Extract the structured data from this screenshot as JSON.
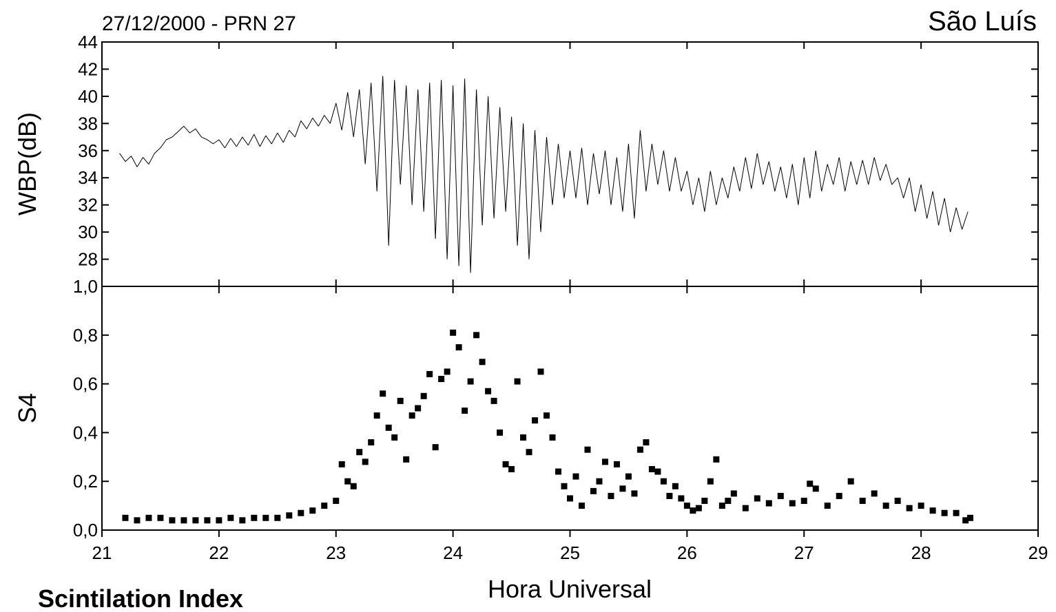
{
  "caption": "Scintilation Index",
  "chart_data": [
    {
      "type": "line",
      "title": "27/12/2000 - PRN 27",
      "annotation": "São Luís",
      "y_label": "WBP(dB)",
      "color": "#000000",
      "xlim": [
        21,
        29
      ],
      "ylim": [
        26,
        44
      ],
      "yticks": [
        28,
        30,
        32,
        34,
        36,
        38,
        40,
        42,
        44
      ],
      "x": [
        21.15,
        21.2,
        21.25,
        21.3,
        21.35,
        21.4,
        21.45,
        21.5,
        21.55,
        21.6,
        21.65,
        21.7,
        21.75,
        21.8,
        21.85,
        21.9,
        21.95,
        22.0,
        22.05,
        22.1,
        22.15,
        22.2,
        22.25,
        22.3,
        22.35,
        22.4,
        22.45,
        22.5,
        22.55,
        22.6,
        22.65,
        22.7,
        22.75,
        22.8,
        22.85,
        22.9,
        22.95,
        23.0,
        23.05,
        23.1,
        23.15,
        23.2,
        23.25,
        23.3,
        23.35,
        23.4,
        23.45,
        23.5,
        23.55,
        23.6,
        23.65,
        23.7,
        23.75,
        23.8,
        23.85,
        23.9,
        23.95,
        24.0,
        24.05,
        24.1,
        24.15,
        24.2,
        24.25,
        24.3,
        24.35,
        24.4,
        24.45,
        24.5,
        24.55,
        24.6,
        24.65,
        24.7,
        24.75,
        24.8,
        24.85,
        24.9,
        24.95,
        25.0,
        25.05,
        25.1,
        25.15,
        25.2,
        25.25,
        25.3,
        25.35,
        25.4,
        25.45,
        25.5,
        25.55,
        25.6,
        25.65,
        25.7,
        25.75,
        25.8,
        25.85,
        25.9,
        25.95,
        26.0,
        26.05,
        26.1,
        26.15,
        26.2,
        26.25,
        26.3,
        26.35,
        26.4,
        26.45,
        26.5,
        26.55,
        26.6,
        26.65,
        26.7,
        26.75,
        26.8,
        26.85,
        26.9,
        26.95,
        27.0,
        27.05,
        27.1,
        27.15,
        27.2,
        27.25,
        27.3,
        27.35,
        27.4,
        27.45,
        27.5,
        27.55,
        27.6,
        27.65,
        27.7,
        27.75,
        27.8,
        27.85,
        27.9,
        27.95,
        28.0,
        28.05,
        28.1,
        28.15,
        28.2,
        28.25,
        28.3,
        28.35,
        28.4
      ],
      "values": [
        35.8,
        35.2,
        35.6,
        34.8,
        35.5,
        35.0,
        35.8,
        36.2,
        36.8,
        37.0,
        37.4,
        37.8,
        37.3,
        37.6,
        37.0,
        36.8,
        36.5,
        36.8,
        36.2,
        36.9,
        36.3,
        37.0,
        36.4,
        37.2,
        36.3,
        37.1,
        36.5,
        37.3,
        36.6,
        37.5,
        37.0,
        38.2,
        37.6,
        38.4,
        37.8,
        38.6,
        38.0,
        39.5,
        37.5,
        40.3,
        37.0,
        40.5,
        35.0,
        41.0,
        33.0,
        41.5,
        29.0,
        41.2,
        33.5,
        40.8,
        32.0,
        40.5,
        31.5,
        41.0,
        29.5,
        41.2,
        28.0,
        40.8,
        27.5,
        41.3,
        27.0,
        40.5,
        30.5,
        40.0,
        31.0,
        39.2,
        31.5,
        38.5,
        29.0,
        38.0,
        28.0,
        37.5,
        30.0,
        37.0,
        32.0,
        36.5,
        32.5,
        36.0,
        32.5,
        36.2,
        32.0,
        35.8,
        32.8,
        36.0,
        32.0,
        35.5,
        31.5,
        36.5,
        31.0,
        37.5,
        33.0,
        36.5,
        33.5,
        36.0,
        33.0,
        35.5,
        33.0,
        34.5,
        32.0,
        34.0,
        31.5,
        34.5,
        32.0,
        34.0,
        32.5,
        34.8,
        33.0,
        35.5,
        33.2,
        35.8,
        33.5,
        35.2,
        33.0,
        34.8,
        32.5,
        35.0,
        32.0,
        35.5,
        32.5,
        36.0,
        33.0,
        35.0,
        33.5,
        35.5,
        33.0,
        35.2,
        33.5,
        35.3,
        33.5,
        35.5,
        33.8,
        35.0,
        33.5,
        34.0,
        32.5,
        34.0,
        31.5,
        33.5,
        31.0,
        33.0,
        30.5,
        32.5,
        30.0,
        31.8,
        30.2,
        31.5
      ]
    },
    {
      "type": "scatter",
      "y_label": "S4",
      "x_label": "Hora Universal",
      "color": "#000000",
      "xlim": [
        21,
        29
      ],
      "ylim": [
        0,
        1
      ],
      "xticks": [
        21,
        22,
        23,
        24,
        25,
        26,
        27,
        28,
        29
      ],
      "yticks": [
        {
          "value": 0,
          "label": "0,0"
        },
        {
          "value": 0.2,
          "label": "0,2"
        },
        {
          "value": 0.4,
          "label": "0,4"
        },
        {
          "value": 0.6,
          "label": "0,6"
        },
        {
          "value": 0.8,
          "label": "0,8"
        },
        {
          "value": 1,
          "label": "1,0"
        }
      ],
      "x": [
        21.2,
        21.3,
        21.4,
        21.5,
        21.6,
        21.7,
        21.8,
        21.9,
        22.0,
        22.1,
        22.2,
        22.3,
        22.4,
        22.5,
        22.6,
        22.7,
        22.8,
        22.9,
        23.0,
        23.05,
        23.1,
        23.15,
        23.2,
        23.25,
        23.3,
        23.35,
        23.4,
        23.45,
        23.5,
        23.55,
        23.6,
        23.65,
        23.7,
        23.75,
        23.8,
        23.85,
        23.9,
        23.95,
        24.0,
        24.05,
        24.1,
        24.15,
        24.2,
        24.25,
        24.3,
        24.35,
        24.4,
        24.45,
        24.5,
        24.55,
        24.6,
        24.65,
        24.7,
        24.75,
        24.8,
        24.85,
        24.9,
        24.95,
        25.0,
        25.05,
        25.1,
        25.15,
        25.2,
        25.25,
        25.3,
        25.35,
        25.4,
        25.45,
        25.5,
        25.55,
        25.6,
        25.65,
        25.7,
        25.75,
        25.8,
        25.85,
        25.9,
        25.95,
        26.0,
        26.05,
        26.1,
        26.15,
        26.2,
        26.25,
        26.3,
        26.35,
        26.4,
        26.5,
        26.6,
        26.7,
        26.8,
        26.9,
        27.0,
        27.05,
        27.1,
        27.2,
        27.3,
        27.4,
        27.5,
        27.6,
        27.7,
        27.8,
        27.9,
        28.0,
        28.1,
        28.2,
        28.3,
        28.38,
        28.42
      ],
      "values": [
        0.05,
        0.04,
        0.05,
        0.05,
        0.04,
        0.04,
        0.04,
        0.04,
        0.04,
        0.05,
        0.04,
        0.05,
        0.05,
        0.05,
        0.06,
        0.07,
        0.08,
        0.1,
        0.12,
        0.27,
        0.2,
        0.18,
        0.32,
        0.28,
        0.36,
        0.47,
        0.56,
        0.42,
        0.38,
        0.53,
        0.29,
        0.47,
        0.5,
        0.55,
        0.64,
        0.34,
        0.62,
        0.65,
        0.81,
        0.75,
        0.49,
        0.61,
        0.8,
        0.69,
        0.57,
        0.53,
        0.4,
        0.27,
        0.25,
        0.61,
        0.38,
        0.32,
        0.45,
        0.65,
        0.47,
        0.38,
        0.24,
        0.18,
        0.13,
        0.22,
        0.1,
        0.33,
        0.16,
        0.2,
        0.28,
        0.14,
        0.27,
        0.17,
        0.22,
        0.15,
        0.33,
        0.36,
        0.25,
        0.24,
        0.2,
        0.14,
        0.18,
        0.13,
        0.1,
        0.08,
        0.09,
        0.12,
        0.2,
        0.29,
        0.1,
        0.12,
        0.15,
        0.09,
        0.13,
        0.11,
        0.14,
        0.11,
        0.12,
        0.19,
        0.17,
        0.1,
        0.14,
        0.2,
        0.12,
        0.15,
        0.1,
        0.12,
        0.09,
        0.1,
        0.08,
        0.07,
        0.07,
        0.04,
        0.05
      ]
    }
  ]
}
